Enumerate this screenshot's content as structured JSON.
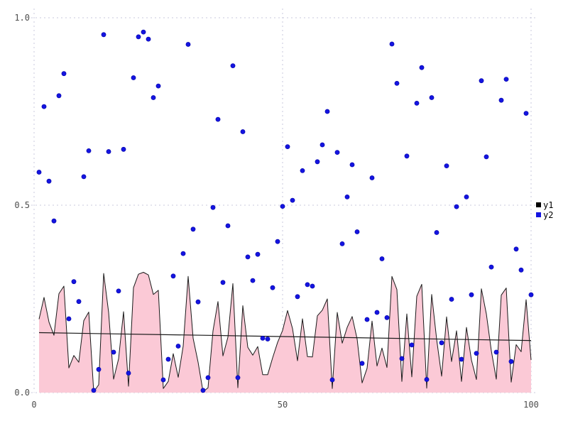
{
  "chart_data": {
    "type": "mixed",
    "title": "",
    "xlabel": "",
    "ylabel": "",
    "xlim": [
      0,
      100
    ],
    "ylim": [
      0,
      1
    ],
    "x_ticks": [
      {
        "value": 0,
        "label": "0"
      },
      {
        "value": 50,
        "label": "50"
      },
      {
        "value": 100,
        "label": "100"
      }
    ],
    "y_ticks": [
      {
        "value": 0.0,
        "label": "0.0"
      },
      {
        "value": 0.5,
        "label": "0.5"
      },
      {
        "value": 1.0,
        "label": "1.0"
      }
    ],
    "grid": "dashed",
    "legend_position": "right-center",
    "x": [
      1,
      2,
      3,
      4,
      5,
      6,
      7,
      8,
      9,
      10,
      11,
      12,
      13,
      14,
      15,
      16,
      17,
      18,
      19,
      20,
      21,
      22,
      23,
      24,
      25,
      26,
      27,
      28,
      29,
      30,
      31,
      32,
      33,
      34,
      35,
      36,
      37,
      38,
      39,
      40,
      41,
      42,
      43,
      44,
      45,
      46,
      47,
      48,
      49,
      50,
      51,
      52,
      53,
      54,
      55,
      56,
      57,
      58,
      59,
      60,
      61,
      62,
      63,
      64,
      65,
      66,
      67,
      68,
      69,
      70,
      71,
      72,
      73,
      74,
      75,
      76,
      77,
      78,
      79,
      80,
      81,
      82,
      83,
      84,
      85,
      86,
      87,
      88,
      89,
      90,
      91,
      92,
      93,
      94,
      95,
      96,
      97,
      98,
      99,
      100
    ],
    "series": [
      {
        "name": "y1",
        "type": "area",
        "values": [
          0.196,
          0.254,
          0.188,
          0.153,
          0.264,
          0.284,
          0.066,
          0.099,
          0.081,
          0.192,
          0.215,
          0.002,
          0.021,
          0.318,
          0.214,
          0.036,
          0.09,
          0.216,
          0.017,
          0.28,
          0.316,
          0.321,
          0.314,
          0.262,
          0.273,
          0.011,
          0.03,
          0.104,
          0.041,
          0.124,
          0.31,
          0.145,
          0.081,
          0.002,
          0.013,
          0.165,
          0.243,
          0.098,
          0.148,
          0.291,
          0.013,
          0.232,
          0.121,
          0.1,
          0.123,
          0.048,
          0.048,
          0.093,
          0.134,
          0.166,
          0.219,
          0.171,
          0.085,
          0.197,
          0.096,
          0.095,
          0.205,
          0.22,
          0.25,
          0.011,
          0.214,
          0.132,
          0.174,
          0.203,
          0.143,
          0.026,
          0.065,
          0.191,
          0.071,
          0.119,
          0.067,
          0.31,
          0.275,
          0.03,
          0.21,
          0.042,
          0.257,
          0.289,
          0.012,
          0.262,
          0.142,
          0.044,
          0.202,
          0.083,
          0.165,
          0.03,
          0.174,
          0.087,
          0.035,
          0.277,
          0.21,
          0.112,
          0.036,
          0.26,
          0.279,
          0.028,
          0.128,
          0.109,
          0.248,
          0.087
        ]
      },
      {
        "name": "y2",
        "type": "scatter",
        "values": [
          0.588,
          0.763,
          0.564,
          0.458,
          0.792,
          0.851,
          0.197,
          0.296,
          0.243,
          0.576,
          0.645,
          0.006,
          0.062,
          0.955,
          0.643,
          0.108,
          0.271,
          0.649,
          0.052,
          0.84,
          0.949,
          0.962,
          0.943,
          0.787,
          0.818,
          0.034,
          0.089,
          0.311,
          0.124,
          0.371,
          0.929,
          0.436,
          0.242,
          0.006,
          0.04,
          0.494,
          0.729,
          0.294,
          0.445,
          0.872,
          0.04,
          0.696,
          0.362,
          0.299,
          0.369,
          0.145,
          0.143,
          0.28,
          0.403,
          0.497,
          0.656,
          0.513,
          0.256,
          0.592,
          0.288,
          0.284,
          0.616,
          0.661,
          0.75,
          0.034,
          0.641,
          0.397,
          0.522,
          0.608,
          0.429,
          0.078,
          0.195,
          0.573,
          0.214,
          0.357,
          0.2,
          0.93,
          0.825,
          0.091,
          0.631,
          0.127,
          0.772,
          0.867,
          0.035,
          0.787,
          0.427,
          0.133,
          0.605,
          0.249,
          0.496,
          0.089,
          0.522,
          0.261,
          0.105,
          0.832,
          0.629,
          0.335,
          0.108,
          0.78,
          0.836,
          0.083,
          0.383,
          0.327,
          0.745,
          0.261
        ]
      }
    ],
    "trend_line": {
      "x1": 1,
      "y1": 0.16,
      "x2": 100,
      "y2": 0.139
    },
    "legend": {
      "entries": [
        {
          "label": "y1",
          "color": "#000000"
        },
        {
          "label": "y2",
          "color": "#1414e0"
        }
      ]
    },
    "style": {
      "area_fill": "#fbc9d6",
      "area_stroke": "#1a1a1a",
      "point_color": "#1414e0",
      "point_edge": "#0000a8",
      "trend_color": "#1a1a1a",
      "grid_color": "#c9c9dc",
      "tick_color": "#4d4d4d"
    }
  }
}
